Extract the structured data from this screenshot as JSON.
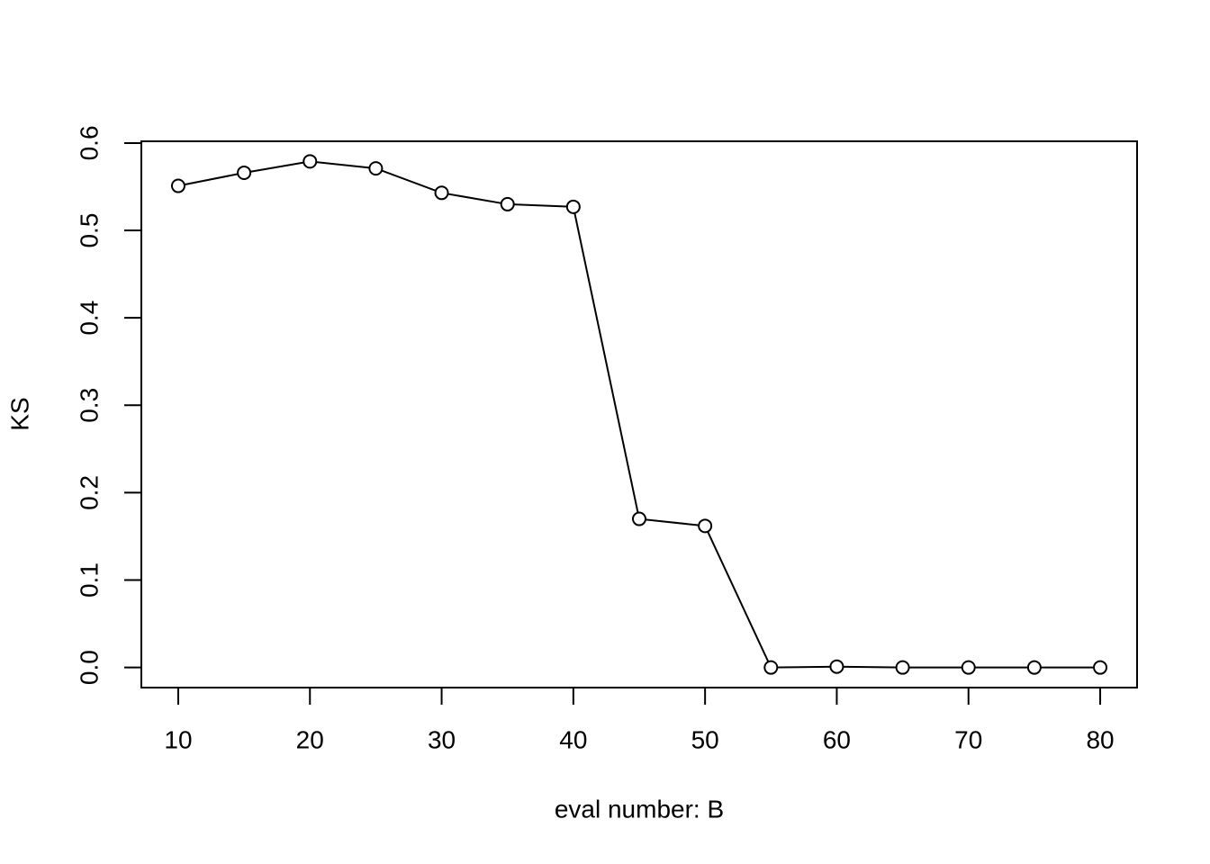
{
  "chart_data": {
    "type": "line",
    "x_label": "eval number: B",
    "y_label": "KS",
    "x": [
      10,
      15,
      20,
      25,
      30,
      35,
      40,
      45,
      50,
      55,
      60,
      65,
      70,
      75,
      80
    ],
    "series": [
      {
        "color": "#000000",
        "values": [
          0.551,
          0.566,
          0.579,
          0.571,
          0.543,
          0.53,
          0.527,
          0.17,
          0.162,
          0.0,
          0.001,
          0.0,
          0.0,
          0.0,
          0.0
        ]
      }
    ],
    "xlim": [
      7.2,
      82.8
    ],
    "ylim": [
      -0.023,
      0.602
    ],
    "xticks": [
      10,
      20,
      30,
      40,
      50,
      60,
      70,
      80
    ],
    "yticks": [
      {
        "value": 0,
        "label": "0.0"
      },
      0.1,
      0.2,
      0.3,
      0.4,
      0.5,
      0.6
    ],
    "markers": "open-circle",
    "grid": false
  }
}
